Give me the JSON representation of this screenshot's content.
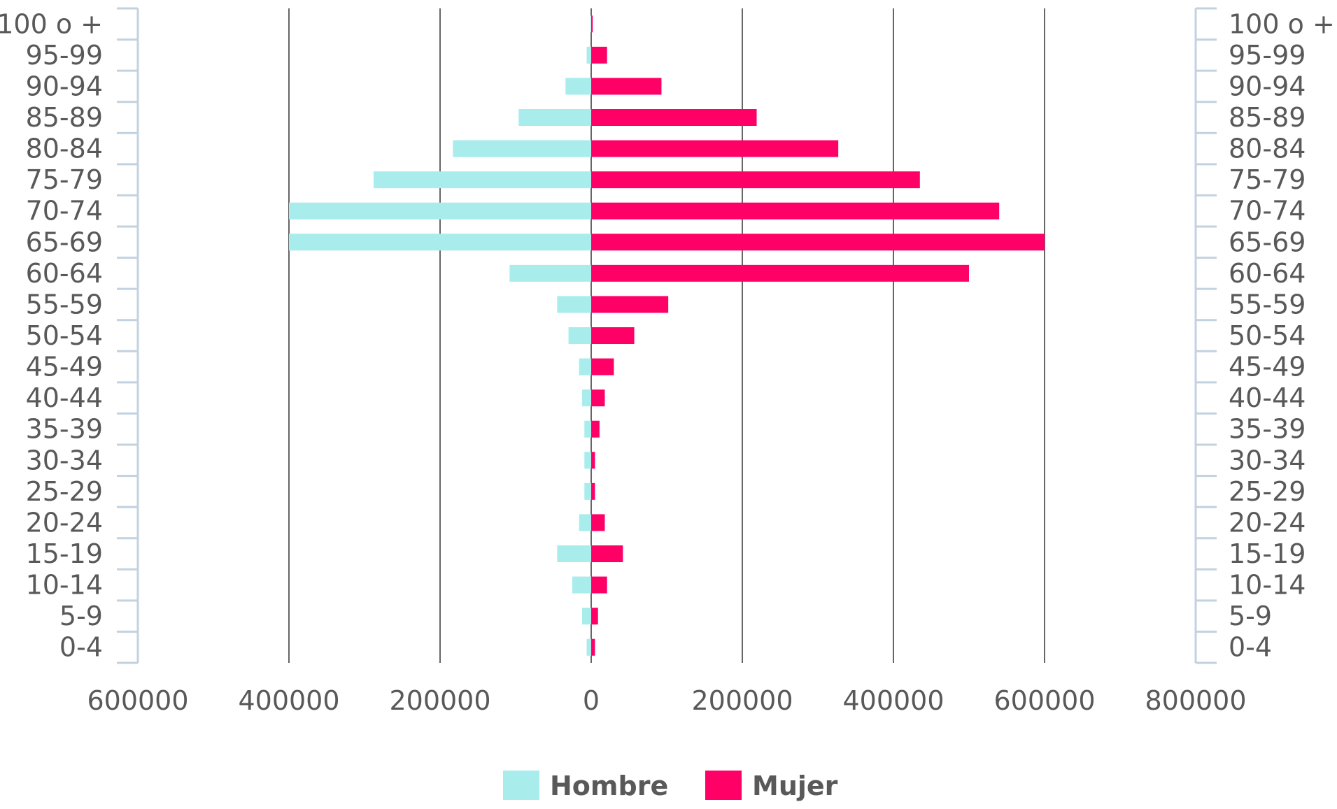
{
  "chart_data": {
    "type": "bar",
    "orientation": "horizontal",
    "layout": "population-pyramid",
    "title": "",
    "xlabel": "",
    "ylabel": "",
    "categories": [
      "0-4",
      "5-9",
      "10-14",
      "15-19",
      "20-24",
      "25-29",
      "30-34",
      "35-39",
      "40-44",
      "45-49",
      "50-54",
      "55-59",
      "60-64",
      "65-69",
      "70-74",
      "75-79",
      "80-84",
      "85-89",
      "90-94",
      "95-99",
      "100 o +"
    ],
    "series": [
      {
        "name": "Hombre",
        "color": "#a8ecec",
        "direction": "left",
        "values": [
          6000,
          12000,
          25000,
          45000,
          16000,
          9000,
          9000,
          9000,
          12000,
          16000,
          30000,
          45000,
          108000,
          400000,
          400000,
          288000,
          183000,
          96000,
          34000,
          6000,
          1000
        ]
      },
      {
        "name": "Mujer",
        "color": "#ff0066",
        "direction": "right",
        "values": [
          5000,
          9000,
          21000,
          42000,
          18000,
          5000,
          5000,
          11000,
          18000,
          30000,
          57000,
          102000,
          500000,
          600000,
          540000,
          435000,
          327000,
          219000,
          93000,
          21000,
          2000
        ]
      }
    ],
    "x_ticks": [
      "600000",
      "400000",
      "200000",
      "0",
      "200000",
      "400000",
      "600000",
      "800000"
    ],
    "xlim": [
      -600000,
      800000
    ],
    "grid": {
      "vertical": true,
      "horizontal": false
    },
    "legend": {
      "position": "bottom-center",
      "entries": [
        "Hombre",
        "Mujer"
      ]
    },
    "colors": {
      "grid": "#666666",
      "axis": "#c2d2e0",
      "text": "#595959"
    }
  }
}
